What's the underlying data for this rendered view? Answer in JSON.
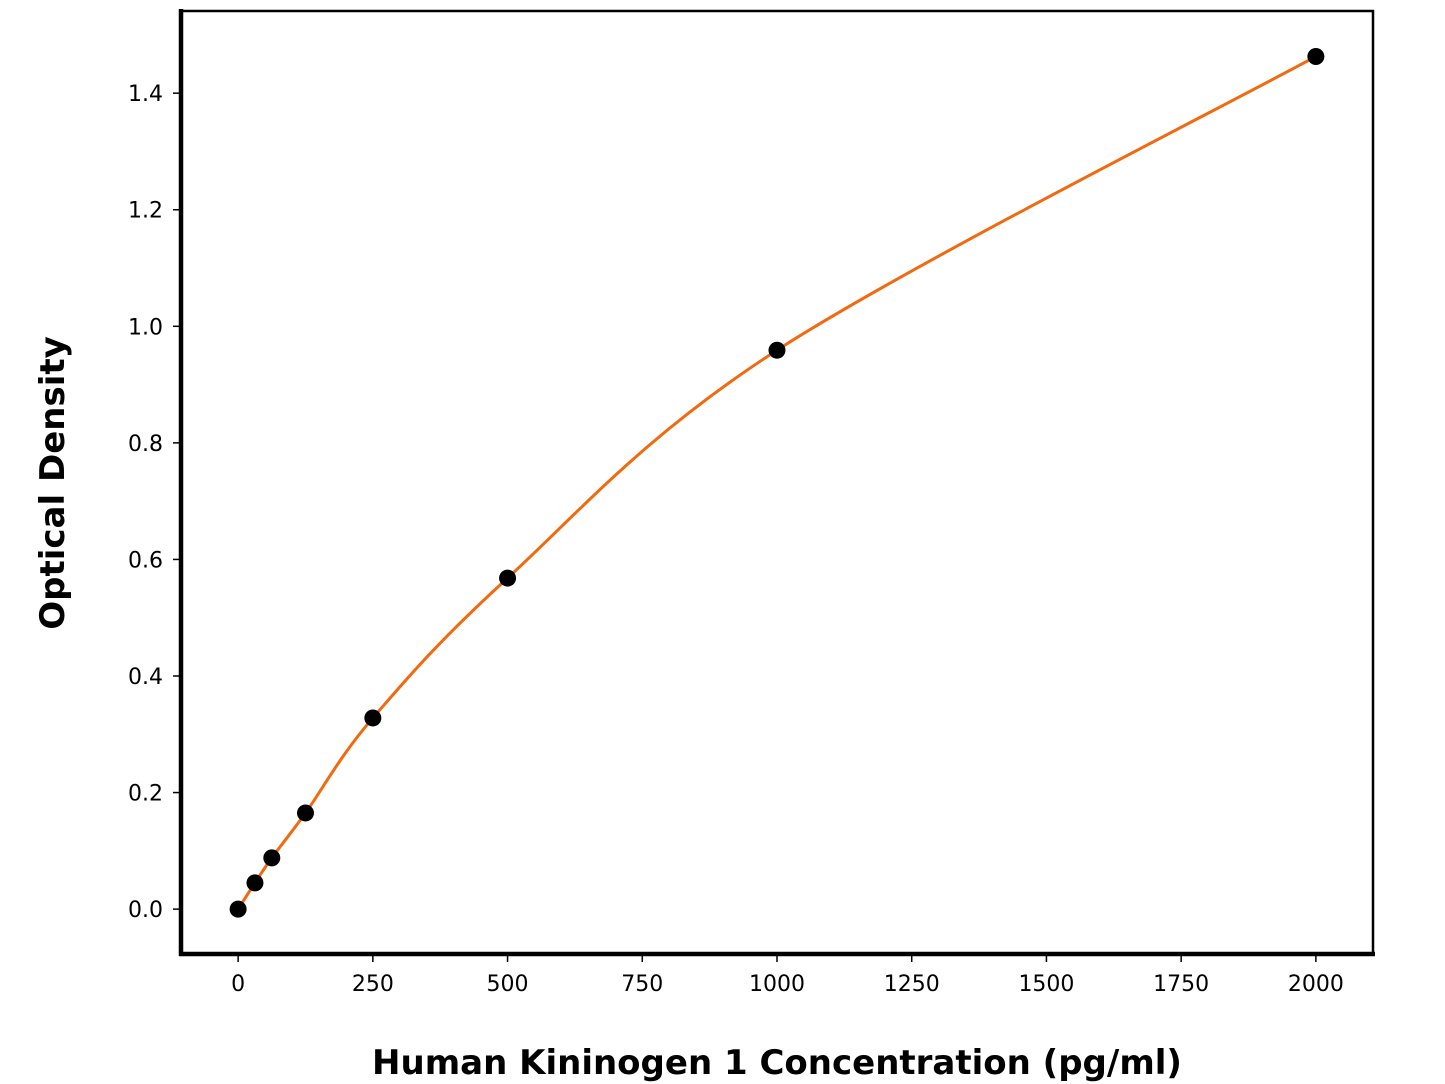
{
  "chart_data": {
    "type": "scatter",
    "title": "",
    "xlabel": "Human Kininogen 1 Concentration (pg/ml)",
    "ylabel": "Optical Density",
    "xlim": [
      -106,
      2106
    ],
    "ylim": [
      -0.077,
      1.541
    ],
    "xticks": [
      0,
      250,
      500,
      750,
      1000,
      1250,
      1500,
      1750,
      2000
    ],
    "xtick_labels": [
      "0",
      "250",
      "500",
      "750",
      "1000",
      "1250",
      "1500",
      "1750",
      "2000"
    ],
    "yticks": [
      0.0,
      0.2,
      0.4,
      0.6,
      0.8,
      1.0,
      1.2,
      1.4
    ],
    "ytick_labels": [
      "0.0",
      "0.2",
      "0.4",
      "0.6",
      "0.8",
      "1.0",
      "1.2",
      "1.4"
    ],
    "grid": false,
    "legend": "none",
    "points": {
      "x": [
        0,
        31.25,
        62.5,
        125,
        250,
        500,
        1000,
        2000
      ],
      "y": [
        0.0,
        0.045,
        0.088,
        0.165,
        0.328,
        0.568,
        0.959,
        1.463
      ]
    },
    "fit_curve": {
      "type": "line",
      "color": "#f26a10"
    },
    "colors": {
      "points": "#000000",
      "curve": "#f26a10"
    }
  }
}
